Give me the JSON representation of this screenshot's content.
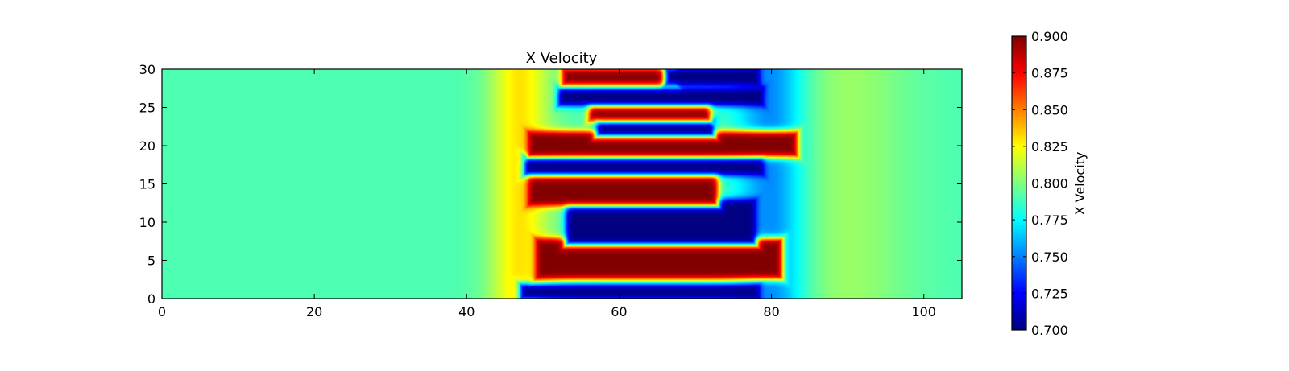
{
  "chart_data": {
    "type": "heatmap",
    "title": "X Velocity",
    "xlabel": "",
    "ylabel": "",
    "xlim": [
      0,
      105
    ],
    "ylim": [
      0,
      30
    ],
    "x_ticks": [
      0,
      20,
      40,
      60,
      80,
      100
    ],
    "y_ticks": [
      0,
      5,
      10,
      15,
      20,
      25,
      30
    ],
    "grid": false,
    "colormap": "jet",
    "colorbar": {
      "label": "X Velocity",
      "min": 0.7,
      "max": 0.9,
      "ticks": [
        "0.700",
        "0.725",
        "0.750",
        "0.775",
        "0.800",
        "0.825",
        "0.850",
        "0.875",
        "0.900"
      ]
    },
    "background_value": 0.79,
    "regions": [
      {
        "kind": "low",
        "value": 0.7,
        "x_start": 47,
        "x_end": 78.5,
        "y_center": 0.9,
        "half_width": 1.0
      },
      {
        "kind": "high",
        "value": 0.9,
        "x_start": 49,
        "x_end": 81.5,
        "y_center": 5.2,
        "half_width": 2.7
      },
      {
        "kind": "low",
        "value": 0.7,
        "x_start": 53,
        "x_end": 78,
        "y_center": 10.0,
        "half_width": 3.0
      },
      {
        "kind": "high",
        "value": 0.9,
        "x_start": 48,
        "x_end": 73,
        "y_center": 14.5,
        "half_width": 2.4
      },
      {
        "kind": "low",
        "value": 0.7,
        "x_start": 47.5,
        "x_end": 79,
        "y_center": 17.4,
        "half_width": 1.3
      },
      {
        "kind": "high",
        "value": 0.9,
        "x_start": 48,
        "x_end": 83.5,
        "y_center": 20.2,
        "half_width": 1.7
      },
      {
        "kind": "low",
        "value": 0.7,
        "x_start": 57,
        "x_end": 72.5,
        "y_center": 22.3,
        "half_width": 1.1
      },
      {
        "kind": "high",
        "value": 0.9,
        "x_start": 56,
        "x_end": 72,
        "y_center": 24.5,
        "half_width": 1.3
      },
      {
        "kind": "low",
        "value": 0.7,
        "x_start": 52,
        "x_end": 79,
        "y_center": 26.4,
        "half_width": 1.2
      },
      {
        "kind": "high",
        "value": 0.9,
        "x_start": 52.5,
        "x_end": 67.5,
        "y_center": 29.0,
        "half_width": 1.1
      },
      {
        "kind": "low",
        "value": 0.7,
        "x_start": 66,
        "x_end": 78.5,
        "y_center": 29.0,
        "half_width": 1.2
      }
    ]
  }
}
